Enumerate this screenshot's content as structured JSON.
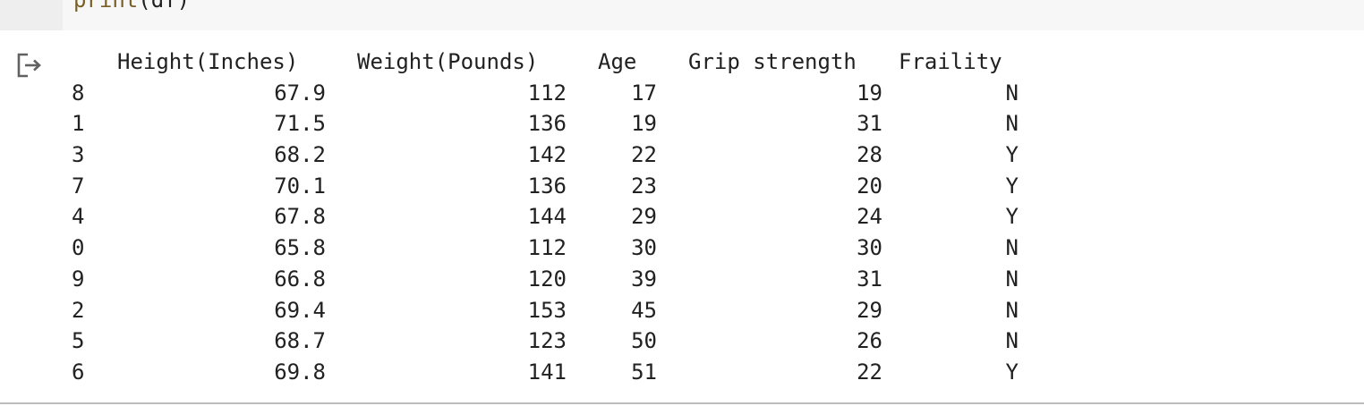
{
  "code_cell": {
    "func": "print",
    "open_paren": "(",
    "arg": "df",
    "close_paren": ")"
  },
  "output": {
    "icon": "output-redirect-icon",
    "columns": {
      "height": "Height(Inches)",
      "weight": "Weight(Pounds)",
      "age": "Age",
      "grip": "Grip strength",
      "frailty": "Fraility"
    },
    "rows": [
      {
        "index": "8",
        "height": "67.9",
        "weight": "112",
        "age": "17",
        "grip": "19",
        "frailty": "N"
      },
      {
        "index": "1",
        "height": "71.5",
        "weight": "136",
        "age": "19",
        "grip": "31",
        "frailty": "N"
      },
      {
        "index": "3",
        "height": "68.2",
        "weight": "142",
        "age": "22",
        "grip": "28",
        "frailty": "Y"
      },
      {
        "index": "7",
        "height": "70.1",
        "weight": "136",
        "age": "23",
        "grip": "20",
        "frailty": "Y"
      },
      {
        "index": "4",
        "height": "67.8",
        "weight": "144",
        "age": "29",
        "grip": "24",
        "frailty": "Y"
      },
      {
        "index": "0",
        "height": "65.8",
        "weight": "112",
        "age": "30",
        "grip": "30",
        "frailty": "N"
      },
      {
        "index": "9",
        "height": "66.8",
        "weight": "120",
        "age": "39",
        "grip": "31",
        "frailty": "N"
      },
      {
        "index": "2",
        "height": "69.4",
        "weight": "153",
        "age": "45",
        "grip": "29",
        "frailty": "N"
      },
      {
        "index": "5",
        "height": "68.7",
        "weight": "123",
        "age": "50",
        "grip": "26",
        "frailty": "N"
      },
      {
        "index": "6",
        "height": "69.8",
        "weight": "141",
        "age": "51",
        "grip": "22",
        "frailty": "Y"
      }
    ]
  }
}
